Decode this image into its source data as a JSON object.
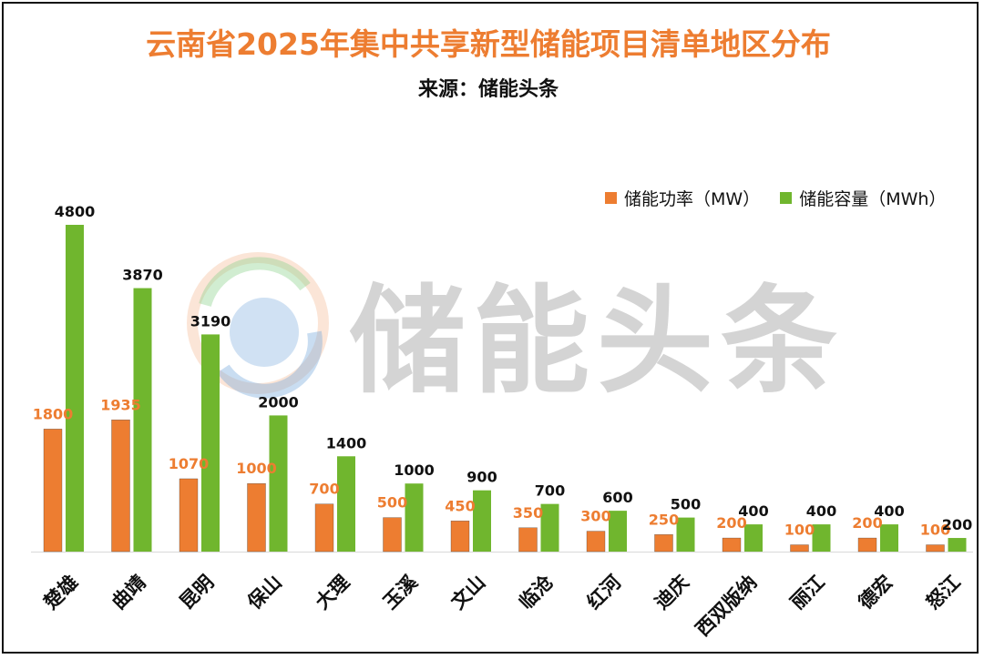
{
  "title": "云南省2025年集中共享新型储能项目清单地区分布",
  "subtitle": "来源：储能头条",
  "watermark": "储能头条",
  "colors": {
    "power": "#ED7D31",
    "capacity": "#70B62E"
  },
  "chart_data": {
    "type": "bar",
    "title": "云南省2025年集中共享新型储能项目清单地区分布",
    "subtitle": "来源：储能头条",
    "categories": [
      "楚雄",
      "曲靖",
      "昆明",
      "保山",
      "大理",
      "玉溪",
      "文山",
      "临沧",
      "红河",
      "迪庆",
      "西双版纳",
      "丽江",
      "德宏",
      "怒江"
    ],
    "series": [
      {
        "name": "储能功率（MW）",
        "values": [
          1800,
          1935,
          1070,
          1000,
          700,
          500,
          450,
          350,
          300,
          250,
          200,
          100,
          200,
          100
        ]
      },
      {
        "name": "储能容量（MWh）",
        "values": [
          4800,
          3870,
          3190,
          2000,
          1400,
          1000,
          900,
          700,
          600,
          500,
          400,
          400,
          400,
          200
        ]
      }
    ],
    "xlabel": "",
    "ylabel": "",
    "ylim": [
      0,
      4800
    ],
    "legend_position": "top-right",
    "grid": false
  }
}
